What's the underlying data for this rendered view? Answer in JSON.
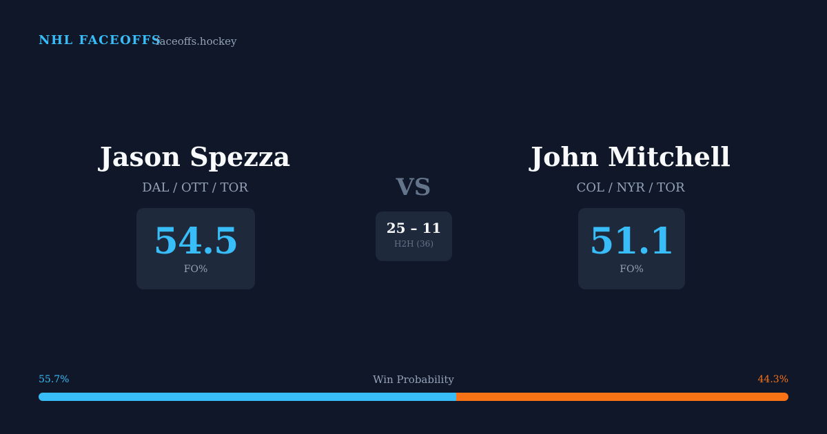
{
  "header": {
    "title": "NHL FACEOFFS",
    "site": "faceoffs.hockey"
  },
  "players": [
    {
      "name": "Jason Spezza",
      "teams": "DAL / OTT / TOR",
      "fo_pct": 54.5,
      "fo_label": "FO%",
      "color": "#38bdf8"
    },
    {
      "name": "John Mitchell",
      "teams": "COL / NYR / TOR",
      "fo_pct": 51.1,
      "fo_label": "FO%",
      "color": "#38bdf8"
    }
  ],
  "versus": "VS",
  "h2h": {
    "score": "25 – 11",
    "label": "H2H (36)"
  },
  "win_probability": {
    "title": "Win Probability",
    "segments": [
      {
        "value": 55.7,
        "label": "55.7%",
        "color": "#38bdf8"
      },
      {
        "value": 44.3,
        "label": "44.3%",
        "color": "#f97316"
      }
    ]
  }
}
